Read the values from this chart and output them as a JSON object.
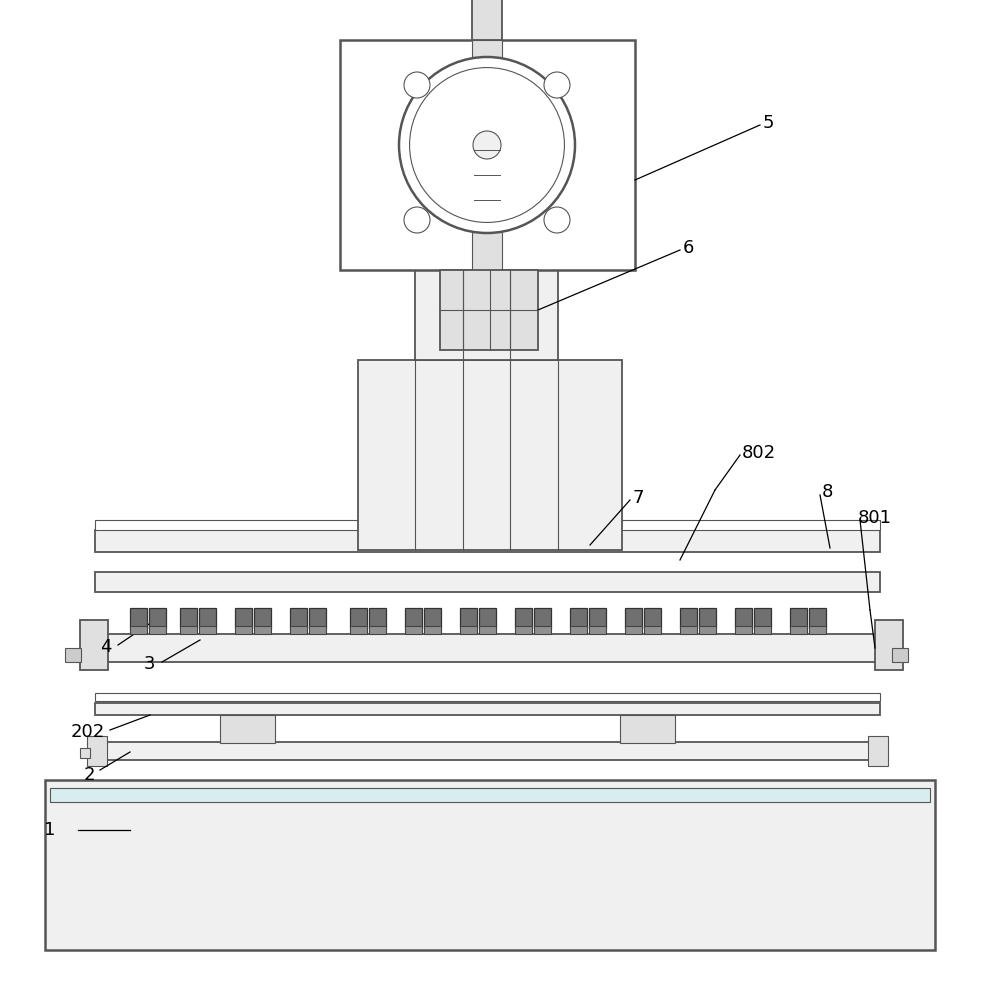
{
  "bg_color": "#ffffff",
  "lc": "#555555",
  "lc_dark": "#333333",
  "figsize": [
    9.94,
    10.0
  ],
  "dpi": 100,
  "lw_main": 1.3,
  "lw_thin": 0.8,
  "lw_bold": 1.8
}
